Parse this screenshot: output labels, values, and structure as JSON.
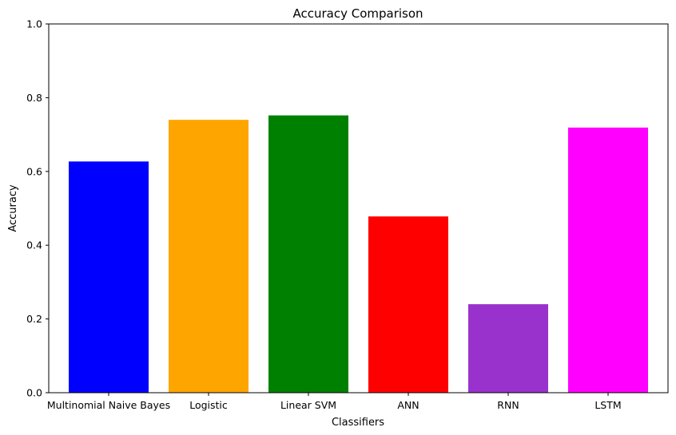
{
  "chart_data": {
    "type": "bar",
    "title": "Accuracy Comparison",
    "xlabel": "Classifiers",
    "ylabel": "Accuracy",
    "categories": [
      "Multinomial Naive Bayes",
      "Logistic",
      "Linear SVM",
      "ANN",
      "RNN",
      "LSTM"
    ],
    "values": [
      0.627,
      0.74,
      0.752,
      0.478,
      0.24,
      0.719
    ],
    "colors": [
      "#0000ff",
      "#ffa500",
      "#008000",
      "#ff0000",
      "#9932cc",
      "#ff00ff"
    ],
    "ylim": [
      0,
      1
    ],
    "yticks": [
      "0.0",
      "0.2",
      "0.4",
      "0.6",
      "0.8",
      "1.0"
    ],
    "grid": false,
    "legend": "none"
  }
}
